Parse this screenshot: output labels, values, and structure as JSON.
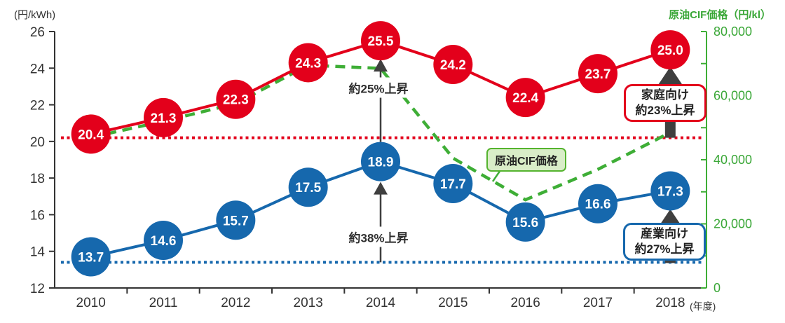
{
  "page": {
    "left_axis_title": "(円/kWh)",
    "right_axis_title": "原油CIF価格（円/kl）",
    "x_axis_unit": "(年度)"
  },
  "colors": {
    "red": "#e3001b",
    "blue": "#1668ad",
    "green": "#3eae36",
    "green_label": "#3aa737",
    "dark": "#333333",
    "arrow_gray": "#3f3f3f",
    "circle_text": "#ffffff"
  },
  "chart_data": {
    "type": "line",
    "categories": [
      "2010",
      "2011",
      "2012",
      "2013",
      "2014",
      "2015",
      "2016",
      "2017",
      "2018"
    ],
    "series": [
      {
        "name": "家庭向け",
        "axis": "left",
        "color": "red",
        "style": "solid-circles",
        "values": [
          20.4,
          21.3,
          22.3,
          24.3,
          25.5,
          24.2,
          22.4,
          23.7,
          25.0
        ],
        "labels": [
          "20.4",
          "21.3",
          "22.3",
          "24.3",
          "25.5",
          "24.2",
          "22.4",
          "23.7",
          "25.0"
        ]
      },
      {
        "name": "産業向け",
        "axis": "left",
        "color": "blue",
        "style": "solid-circles",
        "values": [
          13.7,
          14.6,
          15.7,
          17.5,
          18.9,
          17.7,
          15.6,
          16.6,
          17.3
        ],
        "labels": [
          "13.7",
          "14.6",
          "15.7",
          "17.5",
          "18.9",
          "17.7",
          "15.6",
          "16.6",
          "17.3"
        ]
      },
      {
        "name": "原油CIF価格",
        "axis": "right",
        "color": "green",
        "style": "dashed",
        "values": [
          47000,
          52000,
          57500,
          69500,
          68500,
          40500,
          27500,
          37000,
          48500
        ]
      }
    ],
    "left_axis": {
      "title": "(円/kWh)",
      "min": 12,
      "max": 26,
      "tick_step": 2
    },
    "right_axis": {
      "title": "原油CIF価格（円/kl）",
      "min": 0,
      "max": 80000,
      "tick_step": 10000,
      "label_ticks": [
        {
          "value": 0,
          "label": "0"
        },
        {
          "value": 20000,
          "label": "20,000"
        },
        {
          "value": 40000,
          "label": "40,000"
        },
        {
          "value": 60000,
          "label": "60,000"
        },
        {
          "value": 80000,
          "label": "80,000"
        }
      ]
    },
    "reference_lines": [
      {
        "axis": "left",
        "value": 20.2,
        "color": "red"
      },
      {
        "axis": "left",
        "value": 13.4,
        "color": "blue"
      }
    ],
    "legend_position": "none",
    "grid": false
  },
  "annotations": {
    "rise_household_2014": "約25%上昇",
    "rise_industry_2014": "約38%上昇",
    "household_box_line1": "家庭向け",
    "household_box_line2": "約23%上昇",
    "industry_box_line1": "産業向け",
    "industry_box_line2": "約27%上昇",
    "cif_label": "原油CIF価格"
  }
}
